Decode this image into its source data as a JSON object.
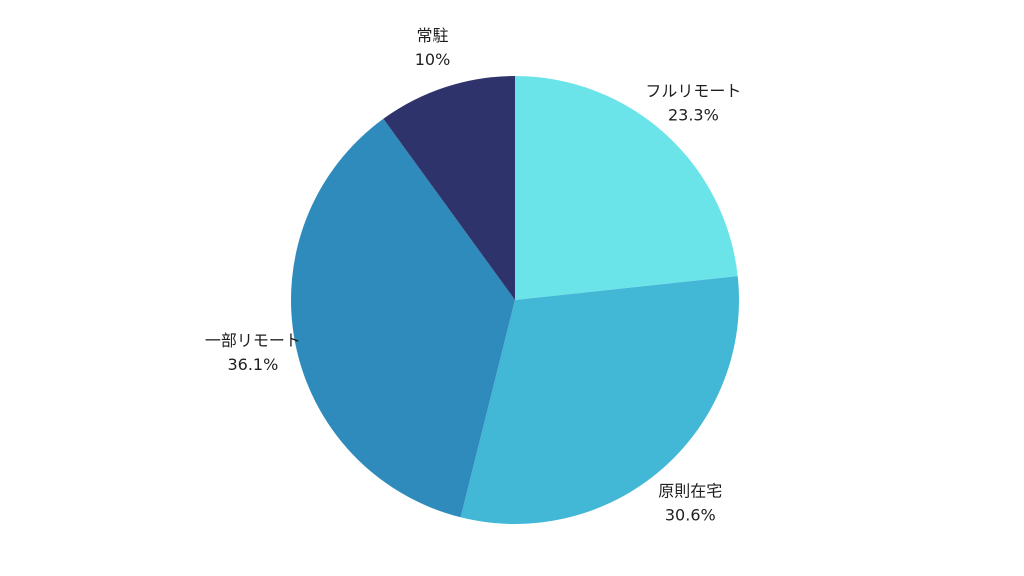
{
  "chart_data": {
    "type": "pie",
    "title": "",
    "start": "top",
    "direction": "clockwise",
    "legend": "none",
    "slices": [
      {
        "label": "フルリモート",
        "value": 23.3,
        "display": "23.3%",
        "color": "#6BE4E9"
      },
      {
        "label": "原則在宅",
        "value": 30.6,
        "display": "30.6%",
        "color": "#42B7D6"
      },
      {
        "label": "一部リモート",
        "value": 36.1,
        "display": "36.1%",
        "color": "#2E8BBB"
      },
      {
        "label": "常駐",
        "value": 10,
        "display": "10%",
        "color": "#2F336B"
      }
    ]
  }
}
